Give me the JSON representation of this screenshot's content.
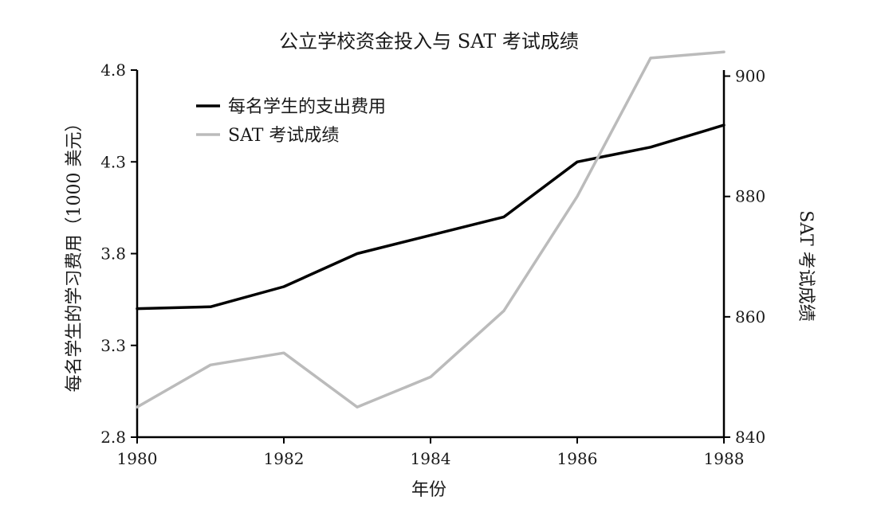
{
  "chart_data": {
    "type": "line",
    "title": "公立学校资金投入与 SAT 考试成绩",
    "xlabel": "年份",
    "ylabel_left": "每名学生的学习费用（1000 美元）",
    "ylabel_right": "SAT 考试成绩",
    "x": [
      1980,
      1981,
      1982,
      1983,
      1984,
      1985,
      1986,
      1987,
      1988
    ],
    "x_ticks": [
      1980,
      1982,
      1984,
      1986,
      1988
    ],
    "xlim": [
      1980,
      1988
    ],
    "ylim_left": [
      2.8,
      4.8
    ],
    "ylim_right": [
      840,
      901
    ],
    "y_ticks_left": [
      "2.8",
      "3.3",
      "3.8",
      "4.3",
      "4.8"
    ],
    "y_ticks_right": [
      "840",
      "860",
      "880",
      "900"
    ],
    "grid": false,
    "legend_position": "top-left",
    "series": [
      {
        "name": "每名学生的支出费用",
        "axis": "left",
        "color": "#000000",
        "values": [
          3.5,
          3.51,
          3.62,
          3.8,
          3.9,
          4.0,
          4.3,
          4.38,
          4.5
        ]
      },
      {
        "name": "SAT 考试成绩",
        "axis": "right",
        "color": "#bbbbbb",
        "values": [
          845,
          852,
          854,
          845,
          850,
          861,
          880,
          903,
          904
        ]
      }
    ]
  }
}
